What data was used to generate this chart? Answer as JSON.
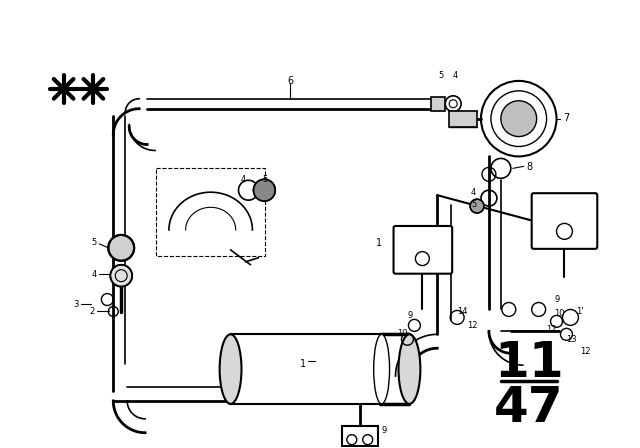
{
  "background_color": "#ffffff",
  "fig_width": 6.4,
  "fig_height": 4.48,
  "dpi": 100,
  "page_top": "11",
  "page_bottom": "47"
}
